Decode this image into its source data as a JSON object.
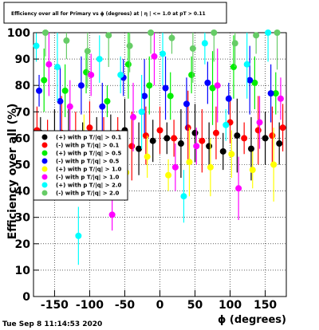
{
  "chart_data": {
    "type": "scatter",
    "title": "Efficiency over all for Primary vs ϕ (degrees) at | η | <= 1.0 at pT > 0.11",
    "xlabel": "ϕ (degrees)",
    "ylabel": "Efficiency over all (%)",
    "xlim": [
      -180,
      180
    ],
    "ylim": [
      0,
      100
    ],
    "x_ticks": [
      -150,
      -100,
      -50,
      0,
      50,
      100,
      150
    ],
    "y_ticks": [
      0,
      10,
      20,
      30,
      40,
      50,
      60,
      70,
      80,
      90,
      100
    ],
    "grid": true,
    "legend_position": "left-middle",
    "series": [
      {
        "name": "(+) with p T/|q| > 0.1",
        "color": "#000000",
        "x": [
          -170,
          -150,
          -130,
          -110,
          -90,
          -70,
          -50,
          -30,
          -10,
          10,
          30,
          50,
          70,
          90,
          110,
          130,
          150,
          170
        ],
        "y": [
          62,
          58,
          60,
          57,
          61,
          55,
          63,
          56,
          59,
          60,
          58,
          62,
          57,
          55,
          61,
          56,
          60,
          58
        ]
      },
      {
        "name": "(-) with p T/|q| > 0.1",
        "color": "#ff0000",
        "x": [
          -175,
          -160,
          -140,
          -120,
          -100,
          -80,
          -60,
          -40,
          -20,
          0,
          20,
          40,
          60,
          80,
          100,
          120,
          140,
          160,
          175
        ],
        "y": [
          63,
          60,
          62,
          58,
          64,
          60,
          62,
          57,
          61,
          63,
          60,
          64,
          59,
          62,
          66,
          60,
          63,
          61,
          64
        ]
      },
      {
        "name": "(+) with p T/|q| > 0.5",
        "color": "#00ee00",
        "x": [
          -165,
          -135,
          -105,
          -75,
          -45,
          -15,
          15,
          45,
          75,
          105,
          135,
          165
        ],
        "y": [
          82,
          78,
          85,
          74,
          88,
          80,
          76,
          84,
          79,
          87,
          81,
          77
        ]
      },
      {
        "name": "(-) with p T/|q| > 0.5",
        "color": "#0000ff",
        "x": [
          -172,
          -142,
          -112,
          -82,
          -52,
          -22,
          8,
          38,
          68,
          98,
          128,
          158
        ],
        "y": [
          78,
          74,
          80,
          72,
          83,
          76,
          79,
          73,
          81,
          75,
          82,
          77
        ]
      },
      {
        "name": "(+) with p T/|q| > 1.0",
        "color": "#ffff00",
        "x": [
          -168,
          -138,
          -108,
          -78,
          -48,
          -18,
          12,
          42,
          72,
          102,
          132,
          162
        ],
        "y": [
          52,
          48,
          55,
          50,
          47,
          53,
          46,
          51,
          49,
          54,
          48,
          50
        ]
      },
      {
        "name": "(-) with p T/|q| > 1.0",
        "color": "#ff00ff",
        "x": [
          -158,
          -128,
          -98,
          -68,
          -38,
          -8,
          22,
          52,
          82,
          112,
          142,
          172
        ],
        "y": [
          88,
          72,
          84,
          31,
          68,
          91,
          49,
          57,
          80,
          41,
          66,
          75
        ]
      },
      {
        "name": "(+) with p T/|q| > 2.0",
        "color": "#00ffff",
        "x": [
          -176,
          -146,
          -116,
          -86,
          -56,
          -26,
          4,
          34,
          64,
          94,
          124,
          154
        ],
        "y": [
          95,
          87,
          23,
          90,
          84,
          70,
          92,
          38,
          96,
          65,
          88,
          100
        ]
      },
      {
        "name": "(-) with p T/|q| > 2.0",
        "color": "#66cc66",
        "x": [
          -163,
          -133,
          -103,
          -73,
          -43,
          -13,
          17,
          47,
          77,
          107,
          137,
          167
        ],
        "y": [
          100,
          97,
          93,
          99,
          95,
          100,
          98,
          94,
          100,
          96,
          99,
          100
        ]
      }
    ]
  },
  "footer": {
    "timestamp": "Tue Sep  8 11:14:53 2020"
  }
}
